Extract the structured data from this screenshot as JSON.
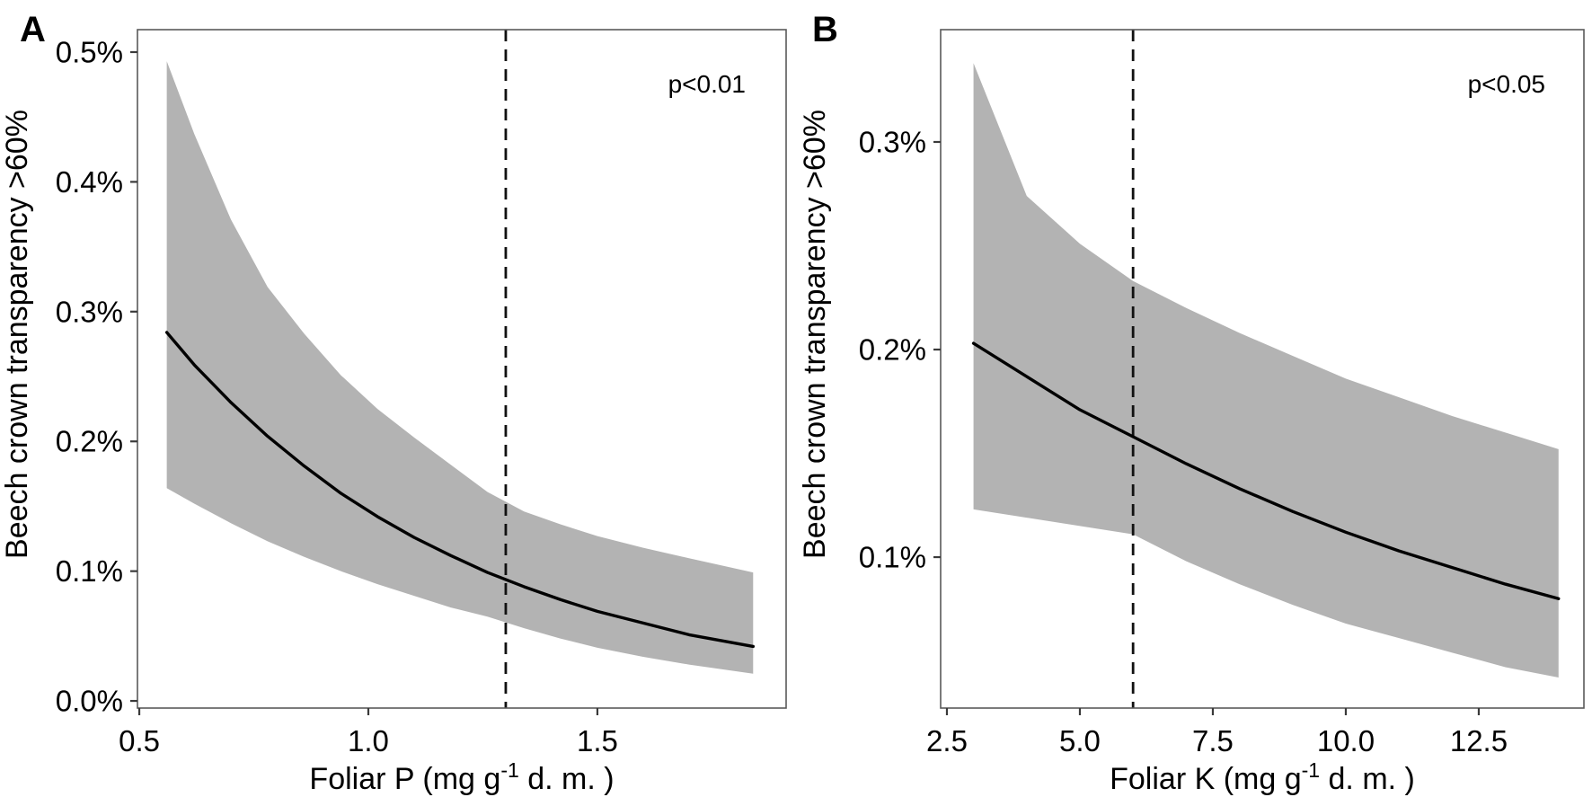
{
  "figure": {
    "background": "#ffffff",
    "note_units": "All y values are percentages; 0.284 means 0.284%"
  },
  "colors": {
    "ribbon": "#b3b3b3",
    "mean_line": "#000000",
    "dashed_line": "#111111",
    "panel_border": "#5a5a5a",
    "tick": "#3a3a3a",
    "text": "#000000"
  },
  "chart_data": [
    {
      "type": "line",
      "panel_label": "A",
      "annotation": "p<0.01",
      "ylabel": "Beech crown transparency >60%",
      "xlabel": "Foliar P (mg g-1 d. m. )",
      "xlabel_parts": {
        "pre": "Foliar P (mg g",
        "sup": "-1",
        "post": " d. m. )"
      },
      "xlim": [
        0.496,
        1.912
      ],
      "ylim_pct": [
        -0.0055,
        0.5173
      ],
      "x_ticks": [
        0.5,
        1.0,
        1.5
      ],
      "x_tick_labels": [
        "0.5",
        "1.0",
        "1.5"
      ],
      "y_ticks": [
        0.0,
        0.1,
        0.2,
        0.3,
        0.4,
        0.5
      ],
      "y_tick_labels": [
        "0.0%",
        "0.1%",
        "0.2%",
        "0.3%",
        "0.4%",
        "0.5%"
      ],
      "vline_x": 1.3,
      "vline_style": "dashed",
      "grid": false,
      "legend": "none",
      "x": [
        0.56,
        0.62,
        0.7,
        0.78,
        0.86,
        0.94,
        1.02,
        1.1,
        1.18,
        1.26,
        1.34,
        1.42,
        1.5,
        1.6,
        1.7,
        1.84
      ],
      "series": [
        {
          "name": "mean",
          "y_pct": [
            0.284,
            0.259,
            0.23,
            0.204,
            0.181,
            0.16,
            0.142,
            0.126,
            0.112,
            0.099,
            0.088,
            0.078,
            0.069,
            0.06,
            0.051,
            0.042
          ]
        },
        {
          "name": "ci_upper",
          "y_pct": [
            0.493,
            0.437,
            0.371,
            0.319,
            0.283,
            0.251,
            0.225,
            0.203,
            0.182,
            0.161,
            0.146,
            0.136,
            0.127,
            0.118,
            0.11,
            0.099
          ]
        },
        {
          "name": "ci_lower",
          "y_pct": [
            0.164,
            0.152,
            0.137,
            0.123,
            0.111,
            0.1,
            0.09,
            0.081,
            0.072,
            0.065,
            0.056,
            0.048,
            0.041,
            0.034,
            0.028,
            0.021
          ]
        }
      ]
    },
    {
      "type": "line",
      "panel_label": "B",
      "annotation": "p<0.05",
      "ylabel": "Beech crown transparency >60%",
      "xlabel": "Foliar K (mg g-1 d. m. )",
      "xlabel_parts": {
        "pre": "Foliar K (mg g",
        "sup": "-1",
        "post": " d. m. )"
      },
      "xlim": [
        2.382,
        14.477
      ],
      "ylim_pct": [
        0.0273,
        0.3541
      ],
      "x_ticks": [
        2.5,
        5.0,
        7.5,
        10.0,
        12.5
      ],
      "x_tick_labels": [
        "2.5",
        "5.0",
        "7.5",
        "10.0",
        "12.5"
      ],
      "y_ticks": [
        0.1,
        0.2,
        0.3
      ],
      "y_tick_labels": [
        "0.1%",
        "0.2%",
        "0.3%"
      ],
      "vline_x": 6.0,
      "vline_style": "dashed",
      "grid": false,
      "legend": "none",
      "x": [
        3,
        4,
        5,
        6,
        7,
        8,
        9,
        10,
        11,
        12,
        13,
        14
      ],
      "series": [
        {
          "name": "mean",
          "y_pct": [
            0.203,
            0.187,
            0.171,
            0.158,
            0.145,
            0.133,
            0.122,
            0.112,
            0.103,
            0.095,
            0.087,
            0.08
          ]
        },
        {
          "name": "ci_upper",
          "y_pct": [
            0.338,
            0.274,
            0.251,
            0.233,
            0.22,
            0.208,
            0.197,
            0.186,
            0.177,
            0.168,
            0.16,
            0.152
          ]
        },
        {
          "name": "ci_lower",
          "y_pct": [
            0.123,
            0.119,
            0.115,
            0.111,
            0.098,
            0.087,
            0.077,
            0.068,
            0.061,
            0.054,
            0.047,
            0.042
          ]
        }
      ]
    }
  ]
}
